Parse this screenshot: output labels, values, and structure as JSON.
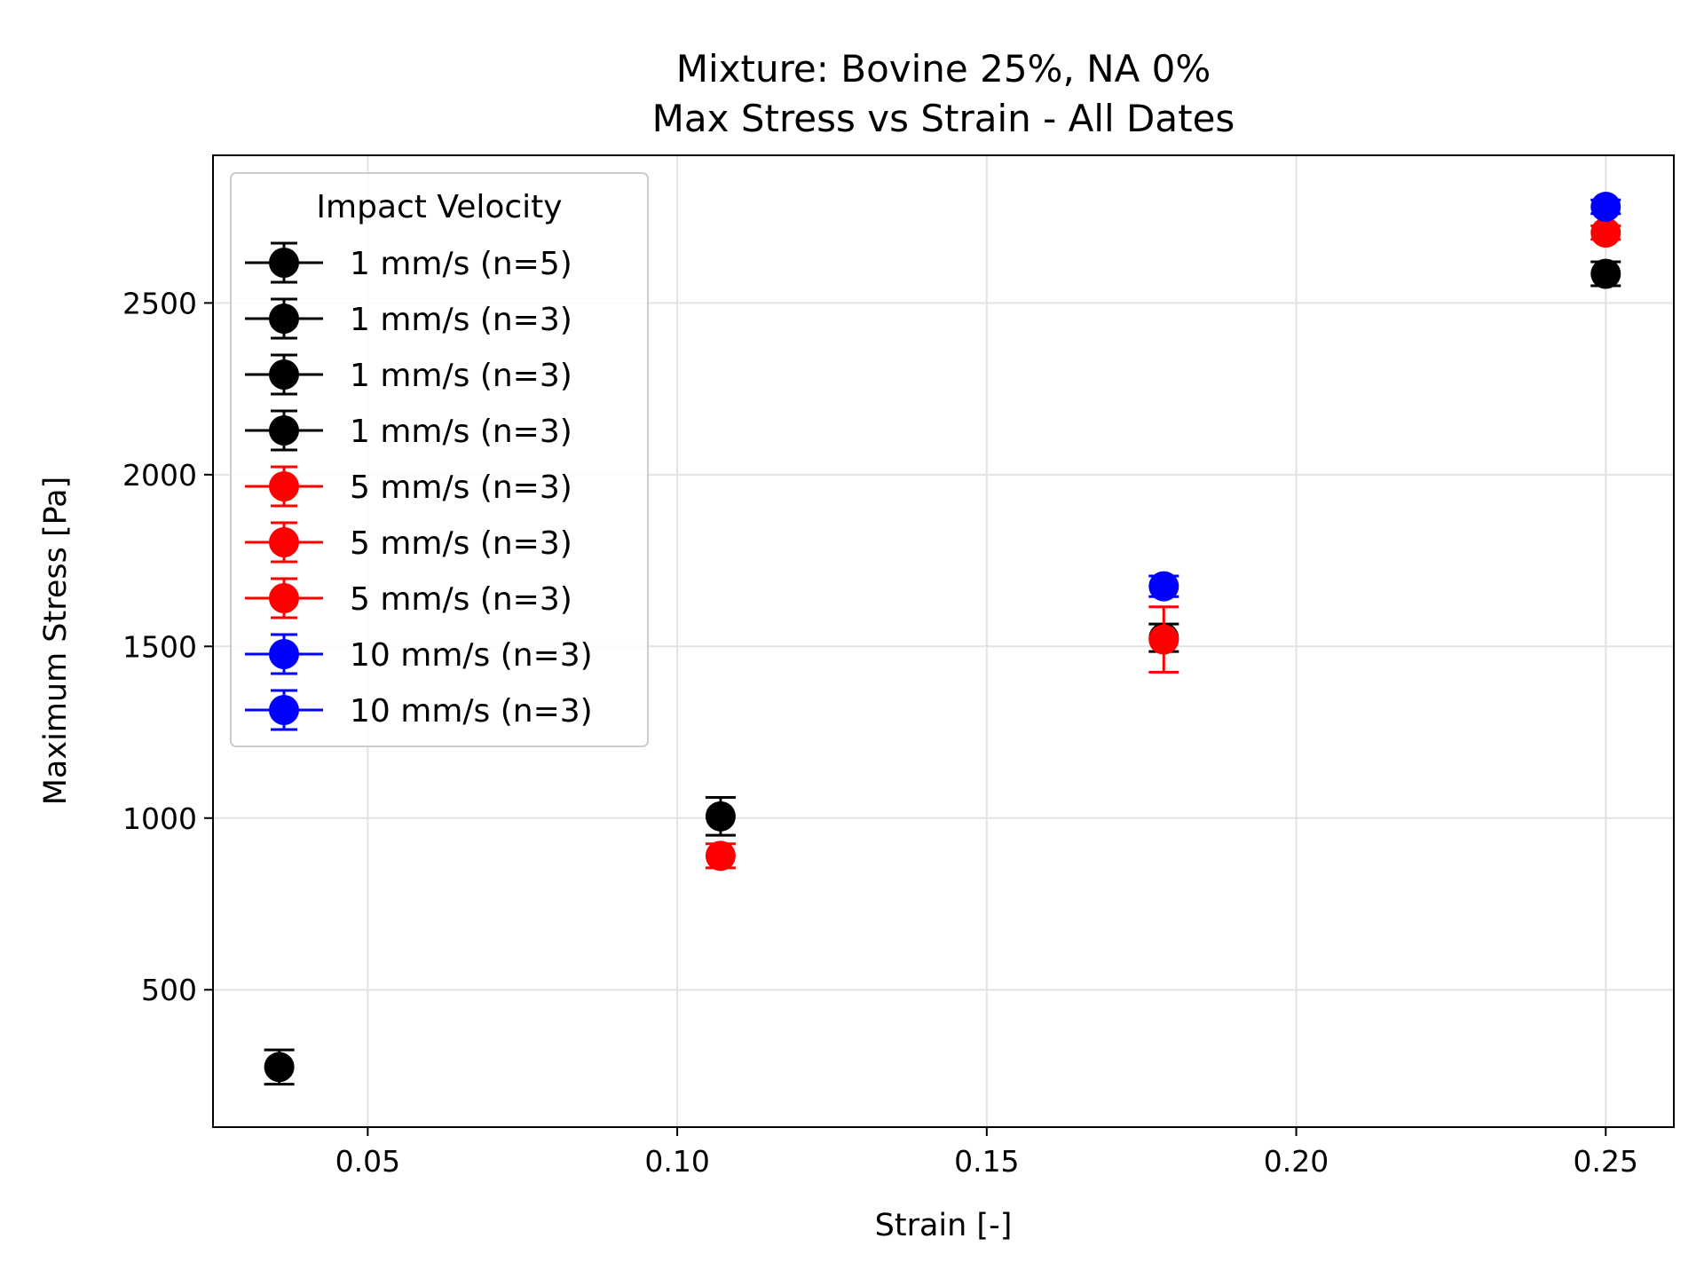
{
  "chart_data": {
    "type": "scatter",
    "title": "Mixture: Bovine 25%, NA 0%",
    "subtitle": "Max Stress vs Strain - All Dates",
    "xlabel": "Strain [-]",
    "ylabel": "Maximum Stress [Pa]",
    "xlim": [
      0.025,
      0.261
    ],
    "ylim": [
      100,
      2930
    ],
    "xticks": [
      0.05,
      0.1,
      0.15,
      0.2,
      0.25
    ],
    "xtick_labels": [
      "0.05",
      "0.10",
      "0.15",
      "0.20",
      "0.25"
    ],
    "yticks": [
      500,
      1000,
      1500,
      2000,
      2500
    ],
    "ytick_labels": [
      "500",
      "1000",
      "1500",
      "2000",
      "2500"
    ],
    "grid": true,
    "legend": {
      "title": "Impact Velocity",
      "placement": "upper-left"
    },
    "series": [
      {
        "name": "1 mm/s (n=5)",
        "color": "#000000",
        "points": [
          {
            "x": 0.0357,
            "y": 275,
            "yerr": 50
          }
        ]
      },
      {
        "name": "1 mm/s (n=3)",
        "color": "#000000",
        "points": [
          {
            "x": 0.107,
            "y": 1005,
            "yerr": 55
          }
        ]
      },
      {
        "name": "1 mm/s (n=3)",
        "color": "#000000",
        "points": [
          {
            "x": 0.1786,
            "y": 1525,
            "yerr": 40
          }
        ]
      },
      {
        "name": "1 mm/s (n=3)",
        "color": "#000000",
        "points": [
          {
            "x": 0.25,
            "y": 2585,
            "yerr": 35
          }
        ]
      },
      {
        "name": "5 mm/s (n=3)",
        "color": "#ff0000",
        "points": [
          {
            "x": 0.107,
            "y": 890,
            "yerr": 35
          }
        ]
      },
      {
        "name": "5 mm/s (n=3)",
        "color": "#ff0000",
        "points": [
          {
            "x": 0.1786,
            "y": 1520,
            "yerr": 95
          }
        ]
      },
      {
        "name": "5 mm/s (n=3)",
        "color": "#ff0000",
        "points": [
          {
            "x": 0.25,
            "y": 2705,
            "yerr": 20
          }
        ]
      },
      {
        "name": "10 mm/s (n=3)",
        "color": "#0000ff",
        "points": [
          {
            "x": 0.1786,
            "y": 1675,
            "yerr": 30
          }
        ]
      },
      {
        "name": "10 mm/s (n=3)",
        "color": "#0000ff",
        "points": [
          {
            "x": 0.25,
            "y": 2780,
            "yerr": 20
          }
        ]
      }
    ]
  }
}
